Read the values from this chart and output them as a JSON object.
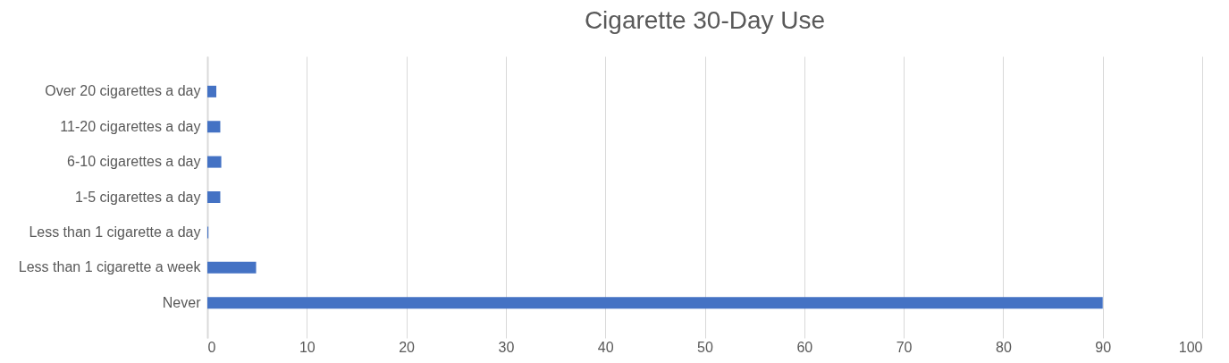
{
  "chart_data": {
    "type": "bar",
    "orientation": "horizontal",
    "title": "Cigarette 30-Day Use",
    "categories": [
      "Over 20 cigarettes a day",
      "11-20 cigarettes a day",
      "6-10 cigarettes a day",
      "1-5 cigarettes a day",
      "Less than 1 cigarette a day",
      "Less than 1 cigarette a week",
      "Never"
    ],
    "values": [
      0.9,
      1.3,
      1.4,
      1.3,
      0.1,
      4.9,
      90
    ],
    "color": "#4472c4",
    "xlim": [
      0,
      100
    ],
    "xticks": [
      0,
      10,
      20,
      30,
      40,
      50,
      60,
      70,
      80,
      90,
      100
    ],
    "grid": "x"
  }
}
